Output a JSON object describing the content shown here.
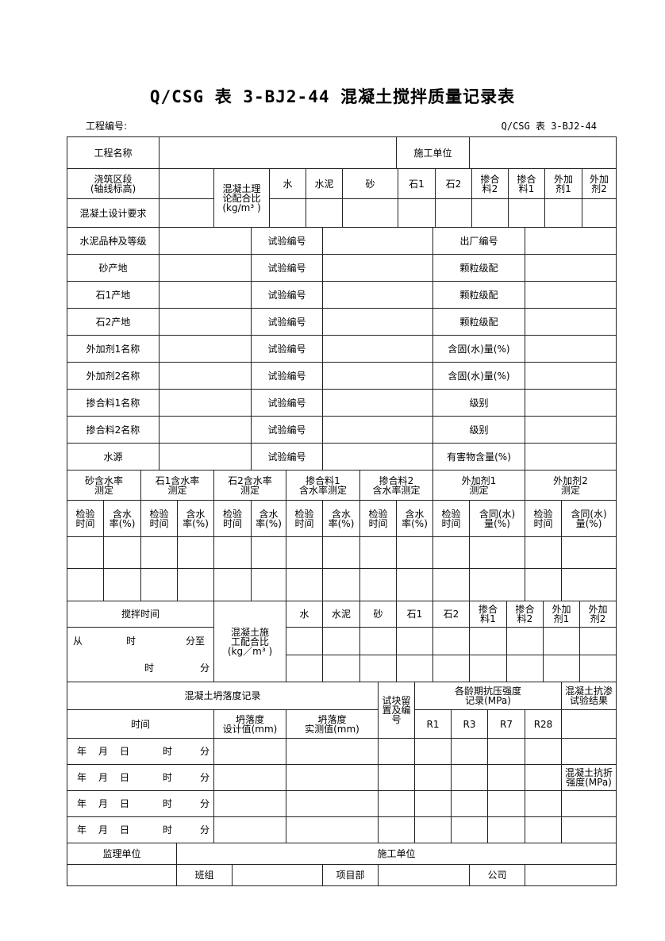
{
  "title": "Q/CSG 表 3-BJ2-44  混凝土搅拌质量记录表",
  "header": {
    "project_no_label": "工程编号:",
    "form_code": "Q/CSG 表 3-BJ2-44"
  },
  "general": {
    "project_name": "工程名称",
    "construction_unit": "施工单位",
    "pour_section": "浇筑区段\n(轴线标高)",
    "design_req": "混凝土设计要求",
    "theory_ratio": "混凝土理\n论配合比\n(kg/m³ )",
    "materials": [
      "水",
      "水泥",
      "砂",
      "石1",
      "石2",
      "掺合\n料2",
      "掺合\n料1",
      "外加\n剂1",
      "外加\n剂2"
    ]
  },
  "materials": {
    "rows": [
      {
        "label": "水泥品种及等级",
        "mid": "试验编号",
        "right": "出厂编号"
      },
      {
        "label": "砂产地",
        "mid": "试验编号",
        "right": "颗粒级配"
      },
      {
        "label": "石1产地",
        "mid": "试验编号",
        "right": "颗粒级配"
      },
      {
        "label": "石2产地",
        "mid": "试验编号",
        "right": "颗粒级配"
      },
      {
        "label": "外加剂1名称",
        "mid": "试验编号",
        "right": "含固(水)量(%)"
      },
      {
        "label": "外加剂2名称",
        "mid": "试验编号",
        "right": "含固(水)量(%)"
      },
      {
        "label": "掺合料1名称",
        "mid": "试验编号",
        "right": "级别"
      },
      {
        "label": "掺合料2名称",
        "mid": "试验编号",
        "right": "级别"
      },
      {
        "label": "水源",
        "mid": "试验编号",
        "right": "有害物含量(%)"
      }
    ]
  },
  "moisture": {
    "groups": [
      "砂含水率\n测定",
      "石1含水率\n测定",
      "石2含水率\n测定",
      "掺合料1\n含水率测定",
      "掺合料2\n含水率测定",
      "外加剂1\n测定",
      "外加剂2\n测定"
    ],
    "sub": [
      "检验\n时间",
      "含水\n率(%)",
      "检验\n时间",
      "含水\n率(%)",
      "检验\n时间",
      "含水\n率(%)",
      "检验\n时间",
      "含水\n率(%)",
      "检验\n时间",
      "含水\n率(%)",
      "检验\n时间",
      "含同(水)\n量(%)",
      "检验\n时间",
      "含同(水)\n量(%)"
    ]
  },
  "mix": {
    "time_label": "搅拌时间",
    "from_line": [
      "从",
      "时",
      "分至"
    ],
    "to_line": [
      "时",
      "分"
    ],
    "ratio_label": "混凝土施\n工配合比\n(kg／m³ )",
    "materials": [
      "水",
      "水泥",
      "砂",
      "石1",
      "石2",
      "掺合\n料1",
      "掺合\n料2",
      "外加\n剂1",
      "外加\n剂2"
    ]
  },
  "slump": {
    "title": "混凝土坍落度记录",
    "time": "时间",
    "design": "坍落度\n设计值(mm)",
    "measured": "坍落度\n实测值(mm)",
    "specimen": "试块留\n置及编\n号",
    "strength": "各龄期抗压强度\n记录(MPa)",
    "ages": [
      "R1",
      "R3",
      "R7",
      "R28"
    ],
    "permeability": "混凝土抗渗\n试验结果",
    "flexural": "混凝土抗折\n强度(MPa)",
    "date_parts": [
      "年",
      "月",
      "日",
      "时",
      "分"
    ]
  },
  "sign": {
    "supervisor": "监理单位",
    "contractor": "施工单位",
    "team": "班组",
    "project_dept": "项目部",
    "company": "公司"
  }
}
